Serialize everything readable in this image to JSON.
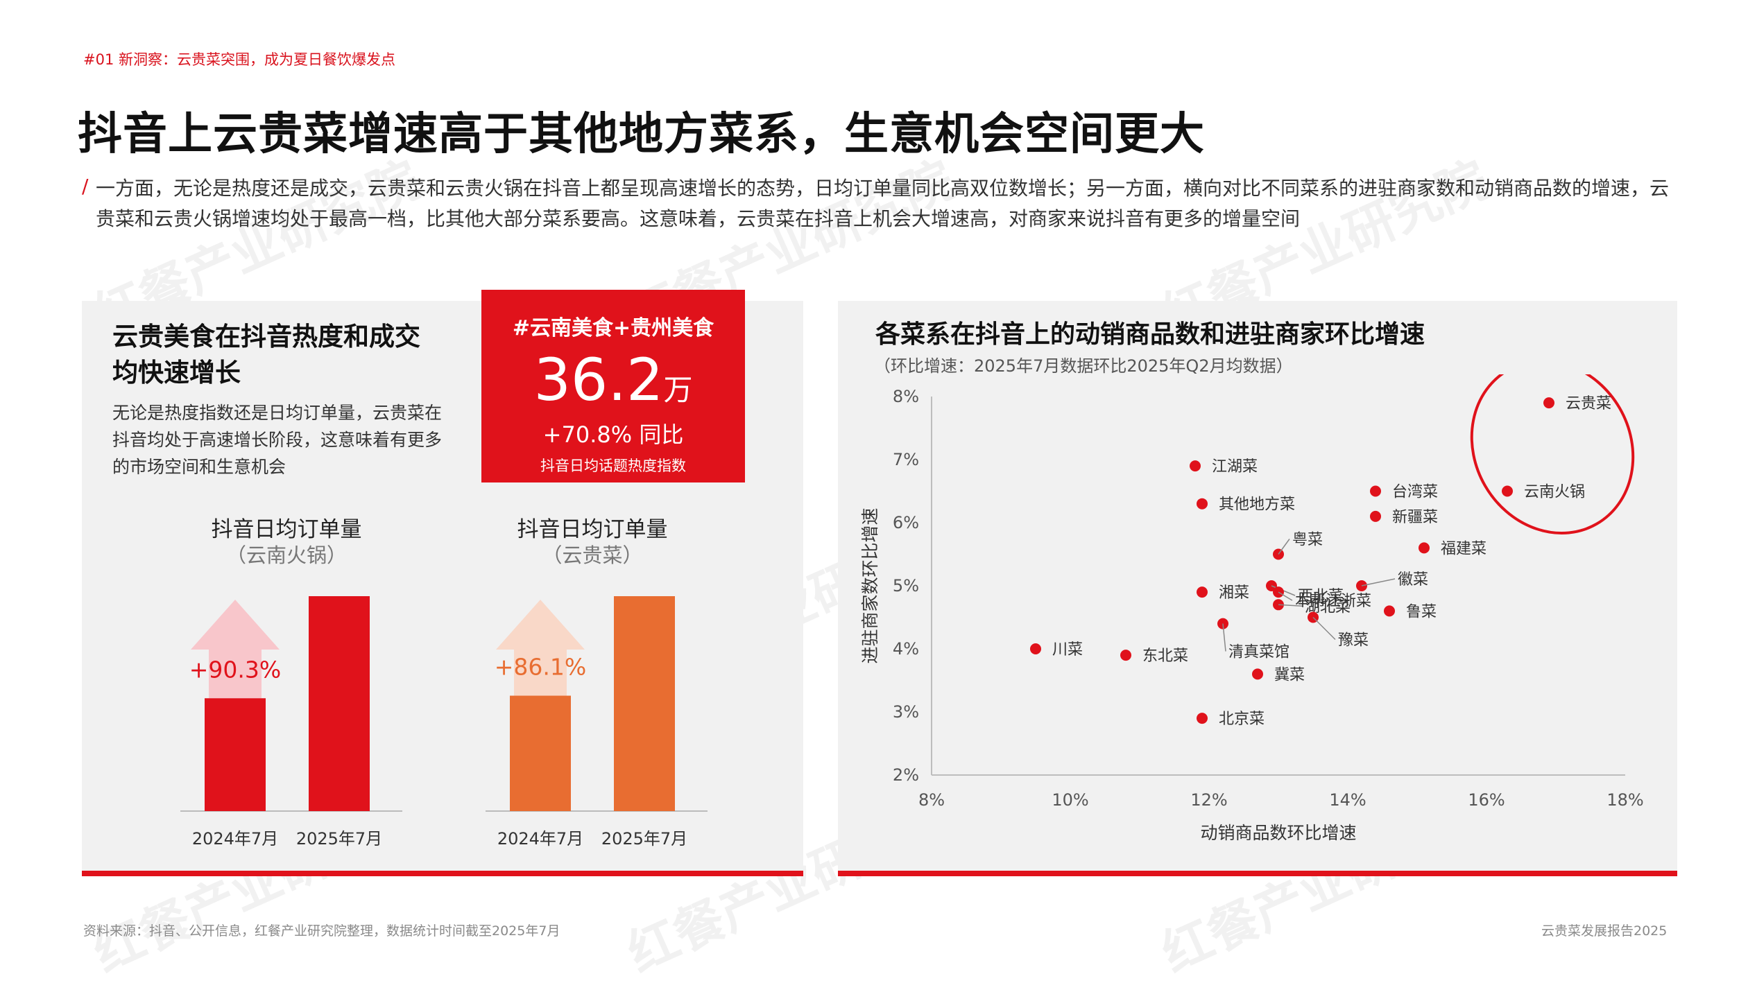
{
  "header": {
    "tag": "#01 新洞察：云贵菜突围，成为夏日餐饮爆发点",
    "title": "抖音上云贵菜增速高于其他地方菜系，生意机会空间更大",
    "intro_mark": "/",
    "intro": "一方面，无论是热度还是成交，云贵菜和云贵火锅在抖音上都呈现高速增长的态势，日均订单量同比高双位数增长；另一方面，横向对比不同菜系的进驻商家数和动销商品数的增速，云贵菜和云贵火锅增速均处于最高一档，比其他大部分菜系要高。这意味着，云贵菜在抖音上机会大增速高，对商家来说抖音有更多的增量空间"
  },
  "watermark": {
    "text": "红餐产业研究院",
    "color": "#e6e6e6"
  },
  "left_panel": {
    "title": "云贵美食在抖音热度和成交均快速增长",
    "desc": "无论是热度指数还是日均订单量，云贵菜在抖音均处于高速增长阶段，这意味着有更多的市场空间和生意机会",
    "highlight": {
      "tag": "#云南美食+贵州美食",
      "value": "36.2",
      "unit": "万",
      "growth": "+70.8% 同比",
      "caption": "抖音日均话题热度指数"
    }
  },
  "colors": {
    "accent": "#e0121b",
    "orange": "#e86d31",
    "panel_bg": "#f1f1f1",
    "grid": "#d0d0d0"
  },
  "chart_data": [
    {
      "type": "bar",
      "title": "抖音日均订单量",
      "subtitle": "（云南火锅）",
      "categories": [
        "2024年7月",
        "2025年7月"
      ],
      "values": [
        52.5,
        100
      ],
      "growth_label": "+90.3%",
      "color": "#e0121b",
      "arrow_color": "#f8c6cb"
    },
    {
      "type": "bar",
      "title": "抖音日均订单量",
      "subtitle": "（云贵菜）",
      "categories": [
        "2024年7月",
        "2025年7月"
      ],
      "values": [
        53.7,
        100
      ],
      "growth_label": "+86.1%",
      "color": "#e86d31",
      "arrow_color": "#f9d8c8"
    },
    {
      "type": "scatter",
      "title": "各菜系在抖音上的动销商品数和进驻商家环比增速",
      "subtitle": "（环比增速：2025年7月数据环比2025年Q2月均数据）",
      "xlabel": "动销商品数环比增速",
      "ylabel": "进驻商家数环比增速",
      "xlim": [
        8,
        18
      ],
      "ylim": [
        2,
        8
      ],
      "xticks": [
        "8%",
        "10%",
        "12%",
        "14%",
        "16%",
        "18%"
      ],
      "yticks": [
        "2%",
        "3%",
        "4%",
        "5%",
        "6%",
        "7%",
        "8%"
      ],
      "grid": false,
      "highlight": [
        "云贵菜",
        "云南火锅"
      ],
      "points": [
        {
          "name": "云贵菜",
          "x": 16.9,
          "y": 7.9
        },
        {
          "name": "云南火锅",
          "x": 16.3,
          "y": 6.5
        },
        {
          "name": "江湖菜",
          "x": 11.8,
          "y": 6.9
        },
        {
          "name": "其他地方菜",
          "x": 11.9,
          "y": 6.3
        },
        {
          "name": "台湾菜",
          "x": 14.4,
          "y": 6.5
        },
        {
          "name": "新疆菜",
          "x": 14.4,
          "y": 6.1
        },
        {
          "name": "福建菜",
          "x": 15.1,
          "y": 5.6
        },
        {
          "name": "粤菜",
          "x": 13.0,
          "y": 5.5
        },
        {
          "name": "西北菜",
          "x": 12.9,
          "y": 5.0
        },
        {
          "name": "徽菜",
          "x": 14.2,
          "y": 5.0
        },
        {
          "name": "本帮江浙菜",
          "x": 13.0,
          "y": 4.9
        },
        {
          "name": "湘菜",
          "x": 11.9,
          "y": 4.9
        },
        {
          "name": "湖北菜",
          "x": 13.0,
          "y": 4.7
        },
        {
          "name": "鲁菜",
          "x": 14.6,
          "y": 4.6
        },
        {
          "name": "豫菜",
          "x": 13.5,
          "y": 4.5
        },
        {
          "name": "清真菜馆",
          "x": 12.2,
          "y": 4.4
        },
        {
          "name": "川菜",
          "x": 9.5,
          "y": 4.0
        },
        {
          "name": "东北菜",
          "x": 10.8,
          "y": 3.9
        },
        {
          "name": "冀菜",
          "x": 12.7,
          "y": 3.6
        },
        {
          "name": "北京菜",
          "x": 11.9,
          "y": 2.9
        }
      ]
    }
  ],
  "footer": {
    "source": "资料来源：抖音、公开信息，红餐产业研究院整理，数据统计时间截至2025年7月",
    "report": "云贵菜发展报告2025"
  }
}
